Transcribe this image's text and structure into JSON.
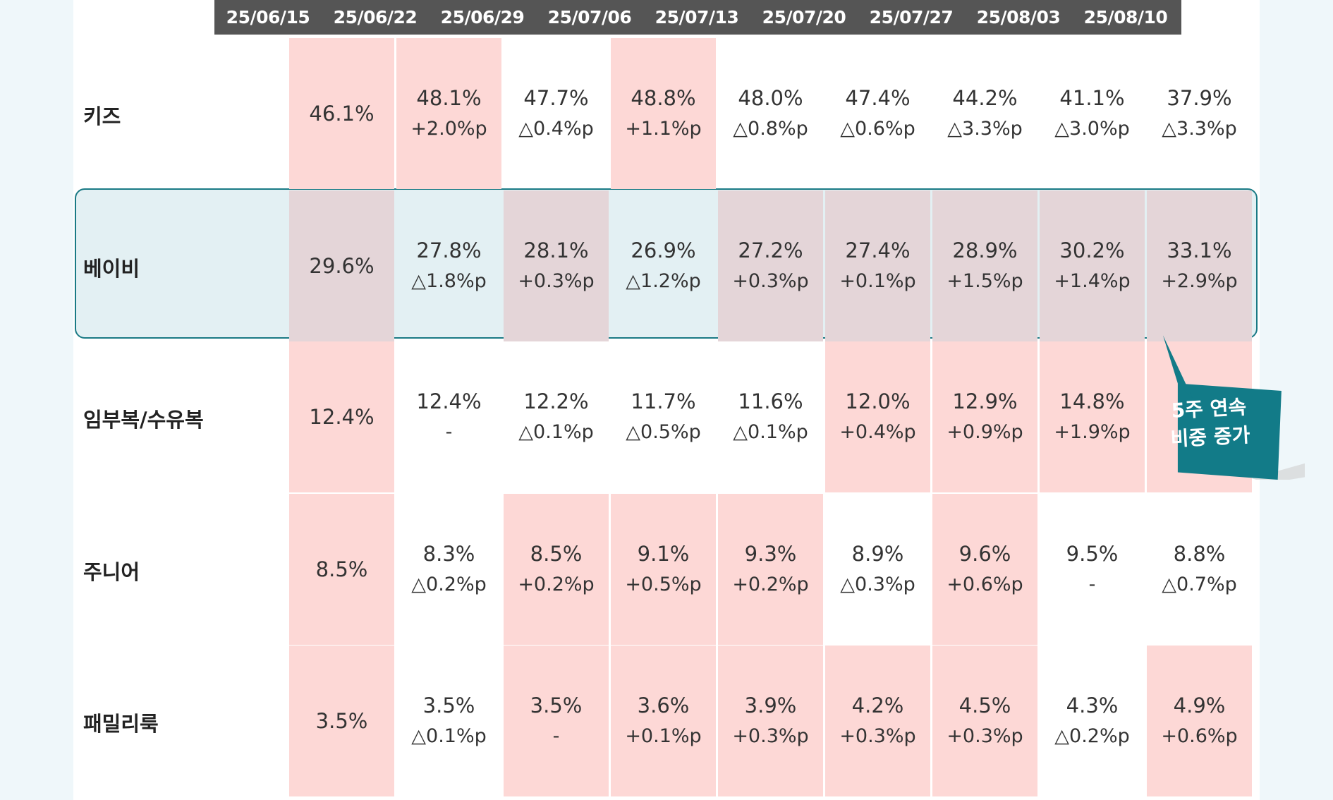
{
  "header": {
    "dates": [
      "25/06/15",
      "25/06/22",
      "25/06/29",
      "25/07/06",
      "25/07/13",
      "25/07/20",
      "25/07/27",
      "25/08/03",
      "25/08/10"
    ]
  },
  "rows": [
    {
      "label": "키즈",
      "cells": [
        {
          "value": "46.1%",
          "change": "",
          "highlight": true
        },
        {
          "value": "48.1%",
          "change": "+2.0%p",
          "highlight": true
        },
        {
          "value": "47.7%",
          "change": "△0.4%p",
          "highlight": false
        },
        {
          "value": "48.8%",
          "change": "+1.1%p",
          "highlight": true
        },
        {
          "value": "48.0%",
          "change": "△0.8%p",
          "highlight": false
        },
        {
          "value": "47.4%",
          "change": "△0.6%p",
          "highlight": false
        },
        {
          "value": "44.2%",
          "change": "△3.3%p",
          "highlight": false
        },
        {
          "value": "41.1%",
          "change": "△3.0%p",
          "highlight": false
        },
        {
          "value": "37.9%",
          "change": "△3.3%p",
          "highlight": false
        }
      ]
    },
    {
      "label": "베이비",
      "cells": [
        {
          "value": "29.6%",
          "change": "",
          "highlight": true
        },
        {
          "value": "27.8%",
          "change": "△1.8%p",
          "highlight": false
        },
        {
          "value": "28.1%",
          "change": "+0.3%p",
          "highlight": true
        },
        {
          "value": "26.9%",
          "change": "△1.2%p",
          "highlight": false
        },
        {
          "value": "27.2%",
          "change": "+0.3%p",
          "highlight": true
        },
        {
          "value": "27.4%",
          "change": "+0.1%p",
          "highlight": true
        },
        {
          "value": "28.9%",
          "change": "+1.5%p",
          "highlight": true
        },
        {
          "value": "30.2%",
          "change": "+1.4%p",
          "highlight": true
        },
        {
          "value": "33.1%",
          "change": "+2.9%p",
          "highlight": true
        }
      ]
    },
    {
      "label": "임부복/수유복",
      "cells": [
        {
          "value": "12.4%",
          "change": "",
          "highlight": true
        },
        {
          "value": "12.4%",
          "change": "-",
          "highlight": false
        },
        {
          "value": "12.2%",
          "change": "△0.1%p",
          "highlight": false
        },
        {
          "value": "11.7%",
          "change": "△0.5%p",
          "highlight": false
        },
        {
          "value": "11.6%",
          "change": "△0.1%p",
          "highlight": false
        },
        {
          "value": "12.0%",
          "change": "+0.4%p",
          "highlight": true
        },
        {
          "value": "12.9%",
          "change": "+0.9%p",
          "highlight": true
        },
        {
          "value": "14.8%",
          "change": "+1.9%p",
          "highlight": true
        },
        {
          "value": "",
          "change": "",
          "highlight": true
        }
      ]
    },
    {
      "label": "주니어",
      "cells": [
        {
          "value": "8.5%",
          "change": "",
          "highlight": true
        },
        {
          "value": "8.3%",
          "change": "△0.2%p",
          "highlight": false
        },
        {
          "value": "8.5%",
          "change": "+0.2%p",
          "highlight": true
        },
        {
          "value": "9.1%",
          "change": "+0.5%p",
          "highlight": true
        },
        {
          "value": "9.3%",
          "change": "+0.2%p",
          "highlight": true
        },
        {
          "value": "8.9%",
          "change": "△0.3%p",
          "highlight": false
        },
        {
          "value": "9.6%",
          "change": "+0.6%p",
          "highlight": true
        },
        {
          "value": "9.5%",
          "change": "-",
          "highlight": false
        },
        {
          "value": "8.8%",
          "change": "△0.7%p",
          "highlight": false
        }
      ]
    },
    {
      "label": "패밀리룩",
      "cells": [
        {
          "value": "3.5%",
          "change": "",
          "highlight": true
        },
        {
          "value": "3.5%",
          "change": "△0.1%p",
          "highlight": false
        },
        {
          "value": "3.5%",
          "change": "-",
          "highlight": true
        },
        {
          "value": "3.6%",
          "change": "+0.1%p",
          "highlight": true
        },
        {
          "value": "3.9%",
          "change": "+0.3%p",
          "highlight": true
        },
        {
          "value": "4.2%",
          "change": "+0.3%p",
          "highlight": true
        },
        {
          "value": "4.5%",
          "change": "+0.3%p",
          "highlight": true
        },
        {
          "value": "4.3%",
          "change": "△0.2%p",
          "highlight": false
        },
        {
          "value": "4.9%",
          "change": "+0.6%p",
          "highlight": true
        }
      ]
    }
  ],
  "callout": {
    "line1": "5주 연속",
    "line2": "비중 증가"
  },
  "colors": {
    "highlight": "#fdd8d6",
    "header_bg": "#555555",
    "accent_teal": "#1a7a85",
    "baby_band": "#e3f0f3"
  }
}
